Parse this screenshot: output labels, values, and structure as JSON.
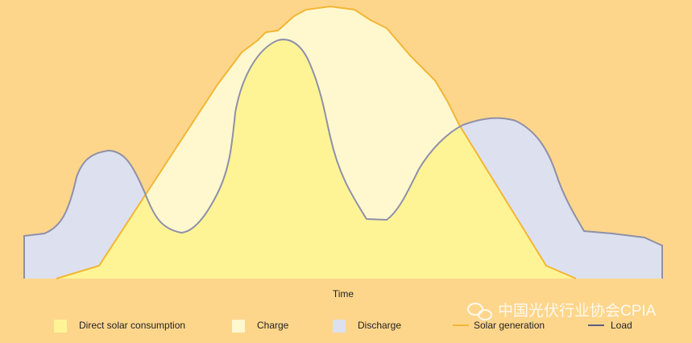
{
  "x_axis_label": "Time",
  "legend": [
    {
      "label": "Direct solar consumption"
    },
    {
      "label": "Charge"
    },
    {
      "label": "Discharge"
    },
    {
      "label": "Solar generation"
    },
    {
      "label": "Load"
    }
  ],
  "watermark": "中国光伏行业协会CPIA"
}
